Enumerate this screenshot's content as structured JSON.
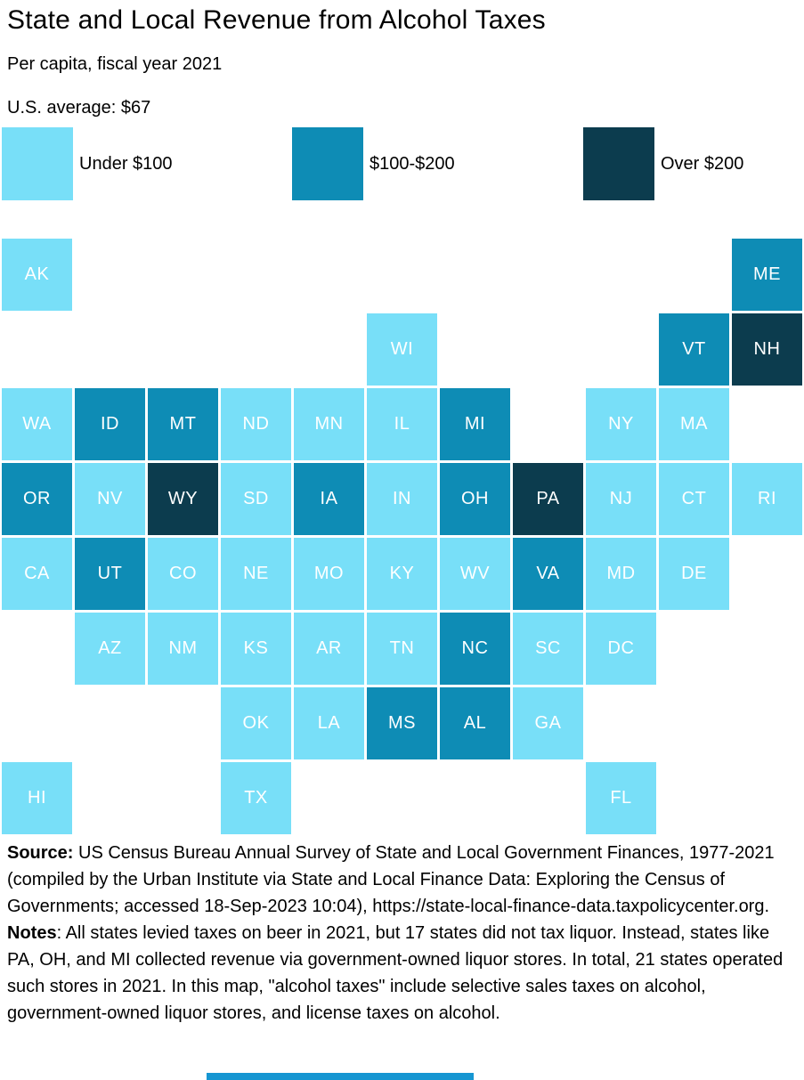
{
  "header": {
    "title": "State and Local Revenue from Alcohol Taxes",
    "subtitle": "Per capita, fiscal year 2021",
    "average_label": "U.S. average: $67"
  },
  "chart_data": {
    "type": "heatmap",
    "variant": "state-tile-grid-map",
    "title": "State and Local Revenue from Alcohol Taxes",
    "subtitle": "Per capita, fiscal year 2021",
    "us_average_usd": 67,
    "unit": "USD per capita, fiscal year 2021",
    "legend_position": "top",
    "grid": {
      "columns": 11,
      "rows": 8
    },
    "bins": [
      {
        "label": "Under $100",
        "color": "#78DFF8"
      },
      {
        "label": "$100-$200",
        "color": "#0E8CB5"
      },
      {
        "label": "Over $200",
        "color": "#0C3C4E"
      }
    ],
    "states": [
      {
        "abbr": "AK",
        "row": 1,
        "col": 1,
        "bin": 0
      },
      {
        "abbr": "ME",
        "row": 1,
        "col": 11,
        "bin": 1
      },
      {
        "abbr": "WI",
        "row": 2,
        "col": 6,
        "bin": 0
      },
      {
        "abbr": "VT",
        "row": 2,
        "col": 10,
        "bin": 1
      },
      {
        "abbr": "NH",
        "row": 2,
        "col": 11,
        "bin": 2
      },
      {
        "abbr": "WA",
        "row": 3,
        "col": 1,
        "bin": 0
      },
      {
        "abbr": "ID",
        "row": 3,
        "col": 2,
        "bin": 1
      },
      {
        "abbr": "MT",
        "row": 3,
        "col": 3,
        "bin": 1
      },
      {
        "abbr": "ND",
        "row": 3,
        "col": 4,
        "bin": 0
      },
      {
        "abbr": "MN",
        "row": 3,
        "col": 5,
        "bin": 0
      },
      {
        "abbr": "IL",
        "row": 3,
        "col": 6,
        "bin": 0
      },
      {
        "abbr": "MI",
        "row": 3,
        "col": 7,
        "bin": 1
      },
      {
        "abbr": "NY",
        "row": 3,
        "col": 9,
        "bin": 0
      },
      {
        "abbr": "MA",
        "row": 3,
        "col": 10,
        "bin": 0
      },
      {
        "abbr": "OR",
        "row": 4,
        "col": 1,
        "bin": 1
      },
      {
        "abbr": "NV",
        "row": 4,
        "col": 2,
        "bin": 0
      },
      {
        "abbr": "WY",
        "row": 4,
        "col": 3,
        "bin": 2
      },
      {
        "abbr": "SD",
        "row": 4,
        "col": 4,
        "bin": 0
      },
      {
        "abbr": "IA",
        "row": 4,
        "col": 5,
        "bin": 1
      },
      {
        "abbr": "IN",
        "row": 4,
        "col": 6,
        "bin": 0
      },
      {
        "abbr": "OH",
        "row": 4,
        "col": 7,
        "bin": 1
      },
      {
        "abbr": "PA",
        "row": 4,
        "col": 8,
        "bin": 2
      },
      {
        "abbr": "NJ",
        "row": 4,
        "col": 9,
        "bin": 0
      },
      {
        "abbr": "CT",
        "row": 4,
        "col": 10,
        "bin": 0
      },
      {
        "abbr": "RI",
        "row": 4,
        "col": 11,
        "bin": 0
      },
      {
        "abbr": "CA",
        "row": 5,
        "col": 1,
        "bin": 0
      },
      {
        "abbr": "UT",
        "row": 5,
        "col": 2,
        "bin": 1
      },
      {
        "abbr": "CO",
        "row": 5,
        "col": 3,
        "bin": 0
      },
      {
        "abbr": "NE",
        "row": 5,
        "col": 4,
        "bin": 0
      },
      {
        "abbr": "MO",
        "row": 5,
        "col": 5,
        "bin": 0
      },
      {
        "abbr": "KY",
        "row": 5,
        "col": 6,
        "bin": 0
      },
      {
        "abbr": "WV",
        "row": 5,
        "col": 7,
        "bin": 0
      },
      {
        "abbr": "VA",
        "row": 5,
        "col": 8,
        "bin": 1
      },
      {
        "abbr": "MD",
        "row": 5,
        "col": 9,
        "bin": 0
      },
      {
        "abbr": "DE",
        "row": 5,
        "col": 10,
        "bin": 0
      },
      {
        "abbr": "AZ",
        "row": 6,
        "col": 2,
        "bin": 0
      },
      {
        "abbr": "NM",
        "row": 6,
        "col": 3,
        "bin": 0
      },
      {
        "abbr": "KS",
        "row": 6,
        "col": 4,
        "bin": 0
      },
      {
        "abbr": "AR",
        "row": 6,
        "col": 5,
        "bin": 0
      },
      {
        "abbr": "TN",
        "row": 6,
        "col": 6,
        "bin": 0
      },
      {
        "abbr": "NC",
        "row": 6,
        "col": 7,
        "bin": 1
      },
      {
        "abbr": "SC",
        "row": 6,
        "col": 8,
        "bin": 0
      },
      {
        "abbr": "DC",
        "row": 6,
        "col": 9,
        "bin": 0
      },
      {
        "abbr": "OK",
        "row": 7,
        "col": 4,
        "bin": 0
      },
      {
        "abbr": "LA",
        "row": 7,
        "col": 5,
        "bin": 0
      },
      {
        "abbr": "MS",
        "row": 7,
        "col": 6,
        "bin": 1
      },
      {
        "abbr": "AL",
        "row": 7,
        "col": 7,
        "bin": 1
      },
      {
        "abbr": "GA",
        "row": 7,
        "col": 8,
        "bin": 0
      },
      {
        "abbr": "HI",
        "row": 8,
        "col": 1,
        "bin": 0
      },
      {
        "abbr": "TX",
        "row": 8,
        "col": 4,
        "bin": 0
      },
      {
        "abbr": "FL",
        "row": 8,
        "col": 9,
        "bin": 0
      }
    ]
  },
  "footer": {
    "source_label": "Source:",
    "source_text": " US Census Bureau Annual Survey of State and Local Government Finances, 1977-2021 (compiled by the Urban Institute via State and Local Finance Data: Exploring the Census of Governments; accessed 18-Sep-2023 10:04), https://state-local-finance-data.taxpolicycenter.org.",
    "notes_label": "Notes",
    "notes_text": ": All states levied taxes on beer in 2021, but 17 states did not tax liquor. Instead, states like PA, OH, and MI collected revenue via government-owned liquor stores. In total, 21 states operated such stores in 2021. In this map, \"alcohol taxes\" include selective sales taxes on alcohol, government-owned liquor stores, and license taxes on alcohol.",
    "accent_bar_color": "#1696D2"
  }
}
